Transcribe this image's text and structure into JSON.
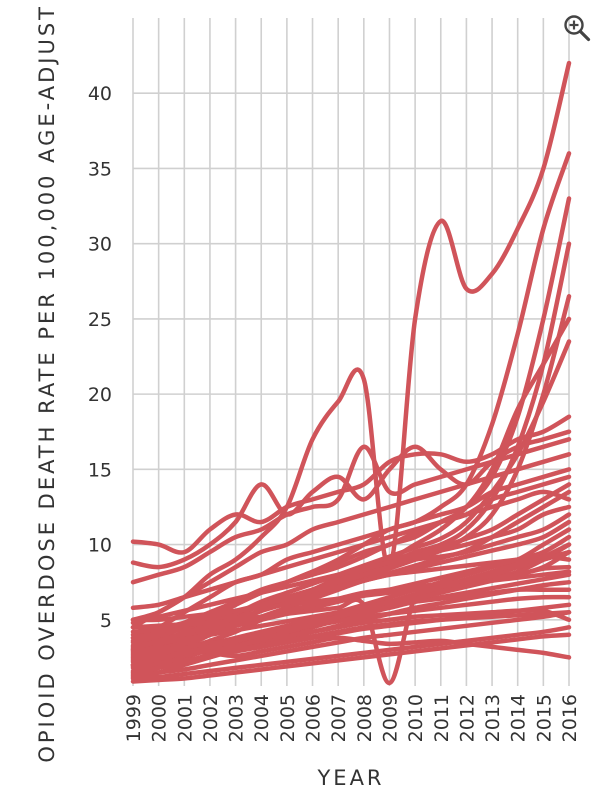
{
  "chart_data": {
    "type": "line",
    "xlabel": "YEAR",
    "ylabel": "OPIOID OVERDOSE DEATH RATE PER 100,000 AGE-ADJUST",
    "ylim": [
      0,
      45
    ],
    "yticks": [
      5,
      10,
      15,
      20,
      25,
      30,
      35,
      40
    ],
    "x": [
      1999,
      2000,
      2001,
      2002,
      2003,
      2004,
      2005,
      2006,
      2007,
      2008,
      2009,
      2010,
      2011,
      2012,
      2013,
      2014,
      2015,
      2016
    ],
    "grid": true,
    "line_color": "#d0545a",
    "series": [
      {
        "values": [
          4.5,
          5.5,
          6.5,
          8.0,
          9.0,
          10.5,
          12.5,
          17.0,
          19.5,
          21.0,
          8.5,
          25.0,
          31.5,
          27.0,
          28.0,
          31.0,
          35.0,
          42.0
        ]
      },
      {
        "values": [
          3.0,
          3.5,
          4.2,
          5.0,
          6.0,
          6.8,
          7.5,
          8.2,
          9.0,
          10.0,
          11.0,
          11.5,
          12.5,
          14.0,
          18.0,
          24.0,
          31.0,
          36.0
        ]
      },
      {
        "values": [
          2.5,
          3.0,
          3.8,
          4.5,
          5.2,
          6.0,
          6.5,
          7.0,
          7.8,
          8.5,
          9.0,
          10.0,
          11.0,
          12.5,
          14.5,
          18.5,
          25.0,
          33.0
        ]
      },
      {
        "values": [
          2.0,
          2.6,
          3.2,
          4.0,
          4.8,
          5.6,
          6.3,
          7.0,
          7.6,
          8.2,
          8.8,
          9.5,
          10.0,
          11.0,
          13.0,
          16.5,
          22.0,
          30.0
        ]
      },
      {
        "values": [
          1.8,
          2.2,
          3.0,
          3.6,
          4.2,
          5.0,
          5.8,
          6.5,
          7.2,
          7.8,
          8.4,
          9.0,
          9.6,
          10.5,
          12.0,
          15.0,
          20.0,
          26.5
        ]
      },
      {
        "values": [
          3.5,
          4.0,
          4.8,
          5.5,
          6.2,
          7.0,
          7.5,
          8.0,
          8.5,
          9.2,
          10.0,
          10.5,
          11.5,
          12.5,
          15.0,
          19.0,
          22.0,
          25.0
        ]
      },
      {
        "values": [
          2.8,
          3.2,
          4.0,
          4.8,
          5.4,
          6.2,
          6.8,
          7.4,
          8.0,
          8.6,
          9.2,
          9.8,
          10.4,
          11.5,
          13.5,
          16.0,
          19.5,
          23.5
        ]
      },
      {
        "values": [
          10.2,
          10.0,
          9.5,
          11.0,
          12.0,
          11.5,
          12.5,
          13.0,
          13.5,
          14.0,
          15.5,
          16.0,
          16.0,
          15.5,
          16.0,
          17.0,
          17.5,
          18.5
        ]
      },
      {
        "values": [
          8.8,
          8.5,
          9.0,
          10.0,
          11.5,
          14.0,
          12.0,
          13.5,
          14.5,
          13.0,
          15.0,
          16.5,
          15.0,
          14.0,
          15.5,
          16.5,
          17.0,
          17.5
        ]
      },
      {
        "values": [
          7.5,
          8.0,
          8.5,
          9.5,
          10.5,
          11.0,
          12.0,
          12.5,
          13.0,
          16.5,
          13.5,
          14.0,
          14.5,
          15.0,
          15.5,
          16.0,
          16.5,
          17.0
        ]
      },
      {
        "values": [
          5.0,
          5.5,
          6.5,
          7.5,
          8.5,
          9.5,
          10.0,
          11.0,
          11.5,
          12.0,
          12.5,
          13.0,
          13.5,
          14.0,
          14.5,
          15.0,
          15.5,
          16.0
        ]
      },
      {
        "values": [
          4.0,
          4.5,
          5.5,
          6.5,
          7.5,
          8.0,
          9.0,
          9.5,
          10.0,
          10.5,
          11.0,
          11.5,
          12.0,
          12.5,
          13.5,
          14.0,
          14.5,
          15.0
        ]
      },
      {
        "values": [
          3.2,
          3.8,
          4.5,
          5.2,
          6.0,
          6.8,
          7.5,
          8.2,
          8.8,
          9.5,
          10.0,
          10.8,
          11.5,
          12.0,
          13.0,
          13.5,
          14.0,
          14.5
        ]
      },
      {
        "values": [
          2.6,
          3.0,
          3.6,
          4.4,
          5.0,
          5.6,
          6.2,
          6.8,
          7.4,
          8.0,
          8.6,
          9.2,
          9.8,
          10.4,
          11.0,
          12.0,
          13.0,
          14.0
        ]
      },
      {
        "values": [
          5.8,
          6.0,
          6.5,
          7.0,
          7.5,
          8.0,
          8.5,
          9.0,
          9.5,
          10.0,
          10.5,
          11.0,
          11.5,
          12.0,
          12.5,
          13.0,
          13.5,
          13.0
        ]
      },
      {
        "values": [
          4.8,
          5.2,
          5.6,
          6.0,
          6.4,
          6.8,
          7.2,
          7.6,
          8.0,
          8.4,
          8.8,
          9.2,
          9.6,
          10.0,
          10.5,
          11.0,
          12.0,
          12.5
        ]
      },
      {
        "values": [
          3.8,
          4.2,
          4.6,
          5.0,
          5.5,
          6.0,
          6.5,
          7.0,
          7.5,
          8.0,
          8.5,
          9.0,
          9.2,
          9.5,
          10.0,
          10.5,
          11.0,
          12.0
        ]
      },
      {
        "values": [
          2.2,
          2.8,
          3.4,
          4.0,
          4.6,
          5.2,
          5.8,
          6.4,
          7.0,
          7.6,
          8.0,
          8.4,
          8.8,
          9.2,
          9.6,
          10.0,
          10.5,
          11.5
        ]
      },
      {
        "values": [
          1.5,
          2.0,
          2.5,
          3.0,
          3.5,
          4.0,
          4.5,
          5.0,
          5.5,
          6.0,
          6.5,
          7.0,
          7.5,
          8.0,
          8.5,
          9.0,
          10.0,
          11.0
        ]
      },
      {
        "values": [
          3.0,
          3.4,
          3.8,
          4.2,
          4.6,
          5.0,
          5.4,
          5.8,
          6.2,
          6.6,
          7.0,
          7.4,
          7.8,
          8.2,
          8.6,
          9.0,
          9.5,
          10.5
        ]
      },
      {
        "values": [
          2.4,
          2.7,
          3.0,
          3.4,
          3.8,
          4.2,
          4.6,
          5.0,
          5.4,
          5.8,
          6.2,
          6.6,
          7.0,
          7.4,
          7.8,
          8.2,
          9.0,
          10.0
        ]
      },
      {
        "values": [
          1.2,
          1.5,
          2.0,
          2.5,
          3.0,
          3.5,
          4.0,
          4.5,
          5.0,
          5.5,
          6.0,
          6.5,
          7.0,
          7.5,
          8.0,
          8.5,
          9.0,
          9.5
        ]
      },
      {
        "values": [
          4.2,
          4.4,
          4.8,
          5.2,
          5.6,
          6.0,
          6.4,
          6.8,
          7.2,
          7.6,
          8.0,
          8.2,
          8.4,
          8.6,
          8.8,
          9.0,
          9.2,
          9.0
        ]
      },
      {
        "values": [
          3.6,
          3.8,
          4.0,
          4.4,
          4.8,
          5.2,
          5.6,
          6.0,
          6.4,
          6.8,
          7.0,
          7.2,
          7.4,
          7.6,
          7.8,
          8.0,
          8.4,
          8.5
        ]
      },
      {
        "values": [
          2.0,
          2.3,
          2.6,
          3.0,
          3.4,
          3.8,
          4.2,
          4.6,
          5.0,
          5.4,
          5.8,
          6.2,
          6.5,
          6.8,
          7.1,
          7.4,
          7.7,
          8.0
        ]
      },
      {
        "values": [
          1.6,
          1.9,
          2.2,
          2.6,
          3.0,
          3.4,
          3.8,
          4.2,
          4.6,
          5.0,
          5.4,
          5.8,
          6.1,
          6.4,
          6.7,
          7.0,
          7.3,
          7.5
        ]
      },
      {
        "values": [
          3.3,
          3.5,
          3.7,
          4.0,
          4.3,
          4.6,
          4.9,
          5.2,
          5.5,
          5.8,
          6.0,
          6.2,
          6.4,
          6.6,
          6.8,
          7.0,
          7.0,
          7.0
        ]
      },
      {
        "values": [
          2.7,
          2.9,
          3.1,
          3.4,
          3.7,
          4.0,
          4.3,
          4.6,
          4.9,
          5.2,
          5.4,
          5.6,
          5.8,
          6.0,
          6.2,
          6.4,
          6.5,
          6.5
        ]
      },
      {
        "values": [
          1.9,
          2.1,
          2.3,
          2.6,
          2.9,
          3.2,
          3.5,
          3.8,
          4.1,
          4.4,
          4.6,
          4.8,
          5.0,
          5.2,
          5.4,
          5.6,
          5.8,
          6.0
        ]
      },
      {
        "values": [
          1.3,
          1.5,
          1.7,
          2.0,
          2.3,
          2.6,
          2.9,
          3.2,
          3.5,
          3.8,
          4.0,
          4.2,
          4.4,
          4.6,
          4.8,
          5.0,
          5.2,
          5.5
        ]
      },
      {
        "values": [
          2.3,
          2.5,
          2.7,
          3.0,
          3.3,
          3.6,
          3.9,
          4.2,
          4.5,
          4.8,
          5.0,
          5.2,
          5.3,
          5.4,
          5.5,
          5.6,
          5.6,
          5.0
        ]
      },
      {
        "values": [
          1.1,
          1.2,
          1.4,
          1.6,
          1.8,
          2.0,
          2.2,
          2.4,
          2.6,
          2.8,
          3.0,
          3.2,
          3.4,
          3.6,
          3.8,
          4.0,
          4.2,
          4.5
        ]
      },
      {
        "values": [
          3.8,
          4.0,
          3.5,
          3.2,
          3.0,
          3.3,
          3.6,
          3.9,
          4.2,
          4.5,
          4.7,
          4.9,
          5.0,
          5.1,
          5.2,
          5.3,
          5.4,
          5.5
        ]
      },
      {
        "values": [
          2.9,
          3.1,
          3.0,
          2.8,
          2.6,
          2.9,
          3.2,
          3.5,
          3.8,
          3.6,
          3.4,
          3.5,
          3.6,
          3.4,
          3.2,
          3.0,
          2.8,
          2.5
        ]
      },
      {
        "values": [
          0.9,
          1.0,
          1.1,
          1.3,
          1.5,
          1.7,
          1.9,
          2.1,
          2.3,
          2.5,
          2.7,
          2.9,
          3.1,
          3.3,
          3.5,
          3.7,
          3.9,
          4.0
        ]
      },
      {
        "values": [
          4.5,
          4.6,
          4.7,
          4.8,
          5.0,
          5.2,
          5.4,
          5.6,
          5.8,
          6.0,
          0.8,
          6.5,
          7.0,
          7.5,
          8.0,
          8.5,
          9.0,
          9.5
        ]
      },
      {
        "values": [
          5.0,
          5.0,
          5.2,
          5.4,
          5.6,
          5.8,
          6.0,
          6.2,
          6.4,
          6.6,
          6.8,
          7.0,
          7.2,
          7.4,
          7.6,
          7.8,
          8.0,
          8.2
        ]
      },
      {
        "values": [
          2.0,
          2.4,
          2.8,
          3.2,
          3.6,
          4.0,
          4.4,
          4.8,
          5.2,
          5.6,
          6.0,
          6.4,
          6.8,
          7.2,
          7.6,
          8.0,
          8.5,
          9.5
        ]
      },
      {
        "values": [
          1.4,
          1.8,
          2.2,
          2.7,
          3.2,
          3.7,
          4.2,
          4.7,
          5.2,
          5.7,
          6.2,
          6.7,
          7.2,
          7.7,
          8.2,
          8.7,
          9.2,
          10.0
        ]
      },
      {
        "values": [
          3.1,
          3.6,
          4.1,
          4.6,
          5.1,
          5.6,
          6.1,
          6.6,
          7.1,
          7.6,
          8.1,
          8.6,
          9.1,
          9.6,
          10.5,
          11.5,
          12.5,
          13.5
        ]
      }
    ]
  }
}
